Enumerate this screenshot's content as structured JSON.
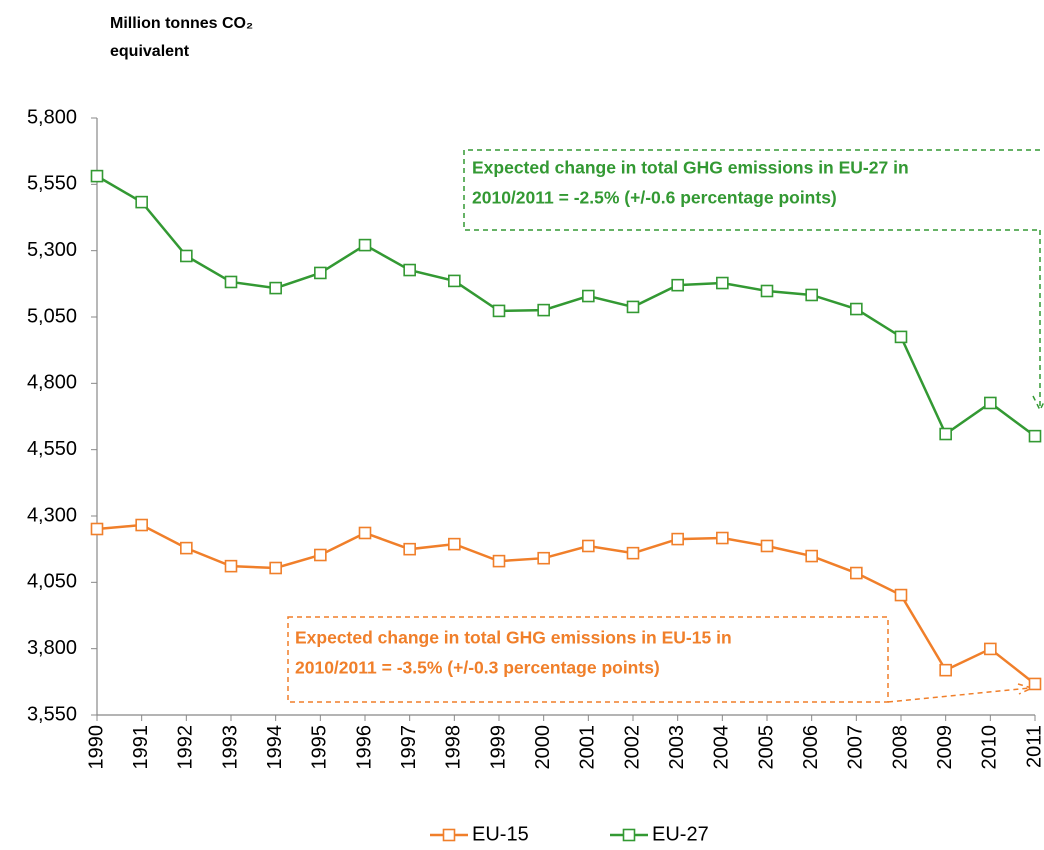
{
  "chart_data": {
    "type": "line",
    "y_label": [
      "Million tonnes CO₂",
      "equivalent"
    ],
    "categories": [
      "1990",
      "1991",
      "1992",
      "1993",
      "1994",
      "1995",
      "1996",
      "1997",
      "1998",
      "1999",
      "2000",
      "2001",
      "2002",
      "2003",
      "2004",
      "2005",
      "2006",
      "2007",
      "2008",
      "2009",
      "2010",
      "2011"
    ],
    "series": [
      {
        "name": "EU-15",
        "color": "#f07f2a",
        "values": [
          4251,
          4266,
          4179,
          4111,
          4104,
          4153,
          4236,
          4175,
          4194,
          4130,
          4141,
          4187,
          4160,
          4213,
          4217,
          4187,
          4149,
          4085,
          4002,
          3719,
          3799,
          3667
        ]
      },
      {
        "name": "EU-27",
        "color": "#339933",
        "values": [
          5581,
          5483,
          5280,
          5182,
          5159,
          5216,
          5321,
          5227,
          5186,
          5073,
          5076,
          5129,
          5088,
          5170,
          5178,
          5148,
          5133,
          5080,
          4975,
          4609,
          4726,
          4601
        ]
      }
    ],
    "ylim": [
      3550,
      5800
    ],
    "yticks": [
      {
        "value": 3550,
        "label": "3,550"
      },
      {
        "value": 3800,
        "label": "3,800"
      },
      {
        "value": 4050,
        "label": "4,050"
      },
      {
        "value": 4300,
        "label": "4,300"
      },
      {
        "value": 4550,
        "label": "4,550"
      },
      {
        "value": 4800,
        "label": "4,800"
      },
      {
        "value": 5050,
        "label": "5,050"
      },
      {
        "value": 5300,
        "label": "5,300"
      },
      {
        "value": 5550,
        "label": "5,550"
      },
      {
        "value": 5800,
        "label": "5,800"
      }
    ],
    "grid": false,
    "legend": "bottom",
    "annotations": [
      {
        "lines": [
          "Expected change in total GHG emissions in EU-27 in",
          "2010/2011 = -2.5% (+/-0.6 percentage points)"
        ]
      },
      {
        "lines": [
          "Expected change in total GHG emissions in EU-15 in",
          "2010/2011 = -3.5% (+/-0.3 percentage points)"
        ]
      }
    ]
  }
}
